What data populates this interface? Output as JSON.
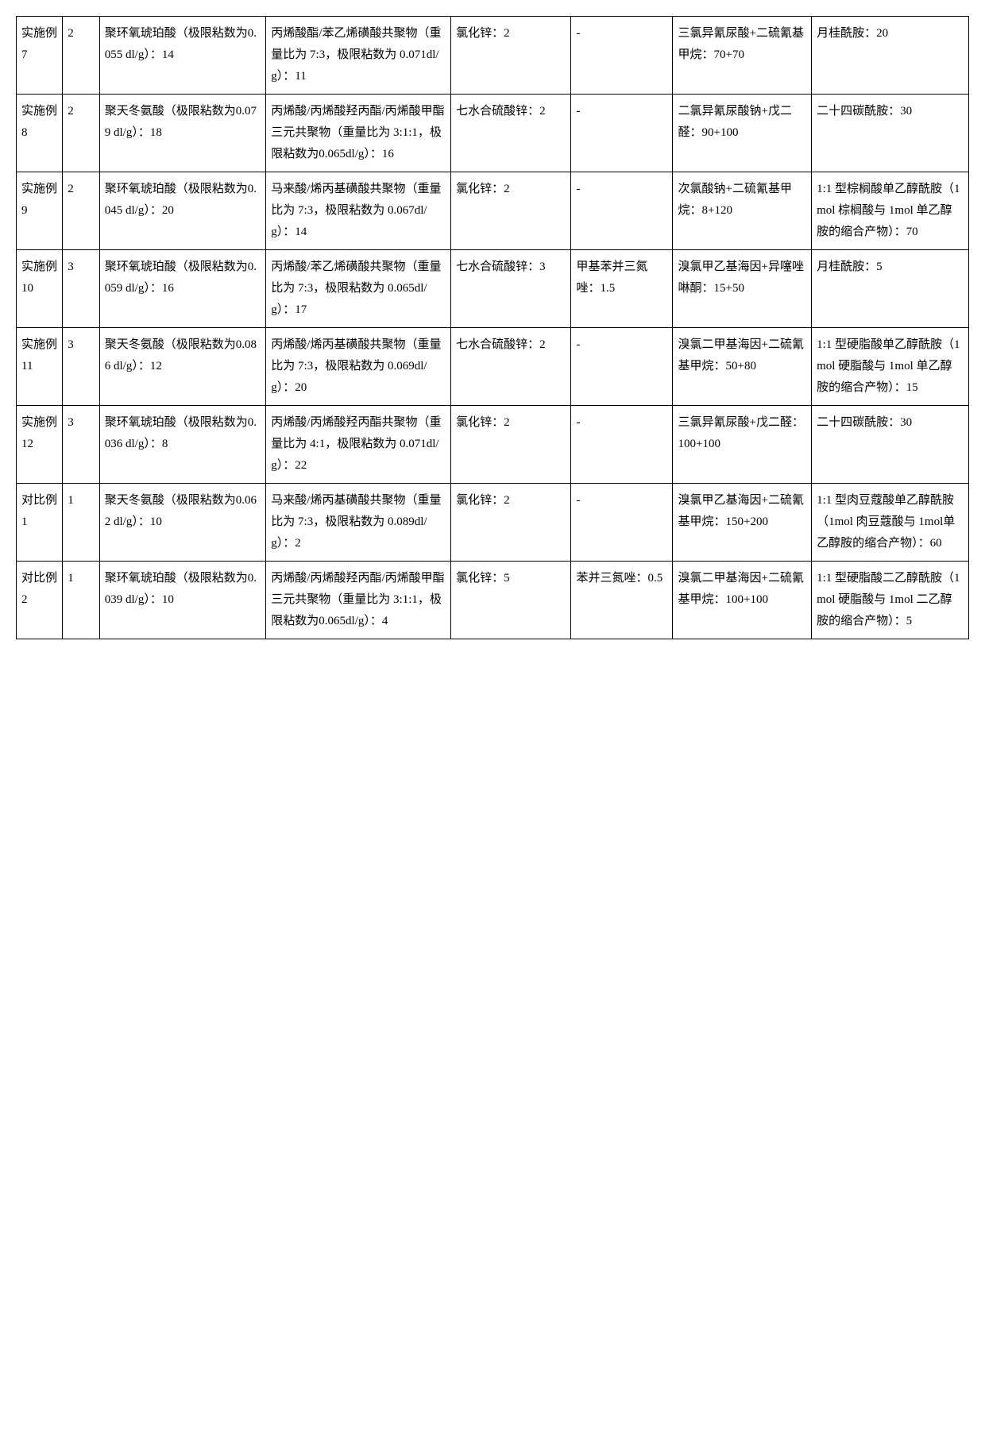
{
  "table": {
    "columns": [
      {
        "class": "col0"
      },
      {
        "class": "col1"
      },
      {
        "class": "col2"
      },
      {
        "class": "col3"
      },
      {
        "class": "col4"
      },
      {
        "class": "col5"
      },
      {
        "class": "col6"
      },
      {
        "class": "col7"
      }
    ],
    "rows": [
      {
        "c0": "实施例7",
        "c1": "2",
        "c2": "聚环氧琥珀酸（极限粘数为0.055 dl/g）：14",
        "c3": "丙烯酸酯/苯乙烯磺酸共聚物（重量比为 7:3，极限粘数为 0.071dl/g）：11",
        "c4": "氯化锌：2",
        "c5": "-",
        "c6": "三氯异氰尿酸+二硫氰基甲烷：70+70",
        "c7": "月桂酰胺：20"
      },
      {
        "c0": "实施例8",
        "c1": "2",
        "c2": "聚天冬氨酸（极限粘数为0.079 dl/g）：18",
        "c3": "丙烯酸/丙烯酸羟丙酯/丙烯酸甲酯三元共聚物（重量比为 3:1:1，极限粘数为0.065dl/g）：16",
        "c4": "七水合硫酸锌：2",
        "c5": "-",
        "c6": "二氯异氰尿酸钠+戊二醛：90+100",
        "c7": "二十四碳酰胺：30"
      },
      {
        "c0": "实施例9",
        "c1": "2",
        "c2": "聚环氧琥珀酸（极限粘数为0.045 dl/g）：20",
        "c3": "马来酸/烯丙基磺酸共聚物（重量比为 7:3，极限粘数为 0.067dl/g）：14",
        "c4": "氯化锌：2",
        "c5": "-",
        "c6": "次氯酸钠+二硫氰基甲烷：8+120",
        "c7": "1:1 型棕榈酸单乙醇酰胺（1mol 棕榈酸与 1mol 单乙醇胺的缩合产物）：70"
      },
      {
        "c0": "实施例10",
        "c1": "3",
        "c2": "聚环氧琥珀酸（极限粘数为0.059 dl/g）：16",
        "c3": "丙烯酸/苯乙烯磺酸共聚物（重量比为 7:3，极限粘数为 0.065dl/g）：17",
        "c4": "七水合硫酸锌：3",
        "c5": "甲基苯并三氮唑：1.5",
        "c6": "溴氯甲乙基海因+异噻唑啉酮：15+50",
        "c7": "月桂酰胺：5"
      },
      {
        "c0": "实施例11",
        "c1": "3",
        "c2": "聚天冬氨酸（极限粘数为0.086 dl/g）：12",
        "c3": "丙烯酸/烯丙基磺酸共聚物（重量比为 7:3，极限粘数为 0.069dl/g）：20",
        "c4": "七水合硫酸锌：2",
        "c5": "-",
        "c6": "溴氯二甲基海因+二硫氰基甲烷：50+80",
        "c7": "1:1 型硬脂酸单乙醇酰胺（1mol 硬脂酸与 1mol 单乙醇胺的缩合产物）：15"
      },
      {
        "c0": "实施例12",
        "c1": "3",
        "c2": "聚环氧琥珀酸（极限粘数为0.036 dl/g）：8",
        "c3": "丙烯酸/丙烯酸羟丙酯共聚物（重量比为 4:1，极限粘数为 0.071dl/g）：22",
        "c4": "氯化锌：2",
        "c5": "-",
        "c6": "三氯异氰尿酸+戊二醛：100+100",
        "c7": "二十四碳酰胺：30"
      },
      {
        "c0": "对比例1",
        "c1": "1",
        "c2": "聚天冬氨酸（极限粘数为0.062 dl/g）：10",
        "c3": "马来酸/烯丙基磺酸共聚物（重量比为 7:3，极限粘数为 0.089dl/g）：2",
        "c4": "氯化锌：2",
        "c5": "-",
        "c6": "溴氯甲乙基海因+二硫氰基甲烷：150+200",
        "c7": "1:1 型肉豆蔻酸单乙醇酰胺（1mol 肉豆蔻酸与 1mol单乙醇胺的缩合产物）：60"
      },
      {
        "c0": "对比例2",
        "c1": "1",
        "c2": "聚环氧琥珀酸（极限粘数为0.039 dl/g）：10",
        "c3": "丙烯酸/丙烯酸羟丙酯/丙烯酸甲酯三元共聚物（重量比为 3:1:1，极限粘数为0.065dl/g）：4",
        "c4": "氯化锌：5",
        "c5": "苯并三氮唑：0.5",
        "c6": "溴氯二甲基海因+二硫氰基甲烷：100+100",
        "c7": "1:1 型硬脂酸二乙醇酰胺（1mol 硬脂酸与 1mol 二乙醇胺的缩合产物）：5"
      }
    ]
  }
}
